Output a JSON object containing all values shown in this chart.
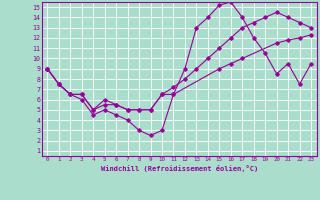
{
  "xlabel": "Windchill (Refroidissement éolien,°C)",
  "bg_color": "#aaddcc",
  "line_color": "#990099",
  "grid_color": "#ffffff",
  "xlim": [
    -0.5,
    23.5
  ],
  "ylim": [
    0.5,
    15.5
  ],
  "xticks": [
    0,
    1,
    2,
    3,
    4,
    5,
    6,
    7,
    8,
    9,
    10,
    11,
    12,
    13,
    14,
    15,
    16,
    17,
    18,
    19,
    20,
    21,
    22,
    23
  ],
  "yticks": [
    1,
    2,
    3,
    4,
    5,
    6,
    7,
    8,
    9,
    10,
    11,
    12,
    13,
    14,
    15
  ],
  "line1_x": [
    0,
    1,
    2,
    3,
    4,
    5,
    6,
    7,
    8,
    9,
    10,
    11,
    15,
    16,
    17,
    20,
    21,
    22,
    23
  ],
  "line1_y": [
    9.0,
    7.5,
    6.5,
    6.5,
    5.0,
    6.0,
    5.5,
    5.0,
    5.0,
    5.0,
    6.5,
    6.5,
    9.0,
    9.5,
    10.0,
    11.5,
    11.8,
    12.0,
    12.3
  ],
  "line2_x": [
    0,
    1,
    2,
    3,
    4,
    5,
    6,
    7,
    8,
    9,
    10,
    11,
    12,
    13,
    14,
    15,
    16,
    17,
    18,
    19,
    20,
    21,
    22,
    23
  ],
  "line2_y": [
    9.0,
    7.5,
    6.5,
    6.0,
    4.5,
    5.0,
    4.5,
    4.0,
    3.0,
    2.5,
    3.0,
    6.5,
    9.0,
    13.0,
    14.0,
    15.2,
    15.5,
    14.0,
    12.0,
    10.5,
    8.5,
    9.5,
    7.5,
    9.5
  ],
  "line3_x": [
    0,
    1,
    2,
    3,
    4,
    5,
    6,
    7,
    8,
    9,
    10,
    11,
    12,
    13,
    14,
    15,
    16,
    17,
    18,
    19,
    20,
    21,
    22,
    23
  ],
  "line3_y": [
    9.0,
    7.5,
    6.5,
    6.5,
    5.0,
    5.5,
    5.5,
    5.0,
    5.0,
    5.0,
    6.5,
    7.2,
    8.0,
    9.0,
    10.0,
    11.0,
    12.0,
    13.0,
    13.5,
    14.0,
    14.5,
    14.0,
    13.5,
    13.0
  ]
}
